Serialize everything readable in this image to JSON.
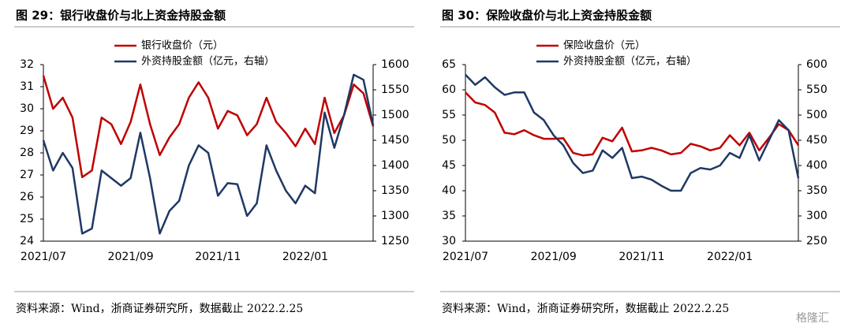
{
  "chart_data": [
    {
      "type": "line",
      "title": "图 29：银行收盘价与北上资金持股金额",
      "categories": [
        "2021/07",
        null,
        null,
        null,
        null,
        null,
        null,
        null,
        null,
        "2021/09",
        null,
        null,
        null,
        null,
        null,
        null,
        null,
        null,
        "2021/11",
        null,
        null,
        null,
        null,
        null,
        null,
        null,
        null,
        "2022/01",
        null,
        null,
        null,
        null,
        null,
        null,
        null
      ],
      "series": [
        {
          "name": "银行收盘价（元）",
          "color": "#c00000",
          "values": [
            31.5,
            30.0,
            30.5,
            29.6,
            26.9,
            27.2,
            29.6,
            29.3,
            28.4,
            29.4,
            31.1,
            29.3,
            27.9,
            28.7,
            29.3,
            30.5,
            31.2,
            30.5,
            29.1,
            29.9,
            29.7,
            28.8,
            29.3,
            30.5,
            29.4,
            28.9,
            28.3,
            29.1,
            28.4,
            30.5,
            28.9,
            29.7,
            31.1,
            30.7,
            29.2
          ]
        },
        {
          "name": "外资持股金额（亿元，右轴）",
          "color": "#1f3864",
          "axis": "y2",
          "values": [
            1450,
            1390,
            1425,
            1395,
            1265,
            1275,
            1390,
            1375,
            1360,
            1375,
            1465,
            1375,
            1265,
            1310,
            1330,
            1400,
            1440,
            1425,
            1340,
            1365,
            1363,
            1300,
            1325,
            1440,
            1390,
            1350,
            1325,
            1360,
            1345,
            1505,
            1435,
            1500,
            1580,
            1570,
            1480
          ]
        }
      ],
      "ylim": [
        24,
        32
      ],
      "yticks": [
        24,
        25,
        26,
        27,
        28,
        29,
        30,
        31,
        32
      ],
      "y2lim": [
        1250,
        1600
      ],
      "y2ticks": [
        1250,
        1300,
        1350,
        1400,
        1450,
        1500,
        1550,
        1600
      ],
      "source": "资料来源：Wind，浙商证券研究所，数据截止 2022.2.25"
    },
    {
      "type": "line",
      "title": "图 30：保险收盘价与北上资金持股金额",
      "categories": [
        "2021/07",
        null,
        null,
        null,
        null,
        null,
        null,
        null,
        null,
        "2021/09",
        null,
        null,
        null,
        null,
        null,
        null,
        null,
        null,
        "2021/11",
        null,
        null,
        null,
        null,
        null,
        null,
        null,
        null,
        "2022/01",
        null,
        null,
        null,
        null,
        null,
        null,
        null
      ],
      "series": [
        {
          "name": "保险收盘价（元）",
          "color": "#c00000",
          "values": [
            59.5,
            57.5,
            57.0,
            55.5,
            51.5,
            51.2,
            52.0,
            51.0,
            50.3,
            50.3,
            50.4,
            47.5,
            47.0,
            47.2,
            50.5,
            49.8,
            52.5,
            47.8,
            48.0,
            48.5,
            48.0,
            47.2,
            47.5,
            49.3,
            48.8,
            48.0,
            48.5,
            51.0,
            49.0,
            51.5,
            48.0,
            50.5,
            53.2,
            52.0,
            49.0
          ]
        },
        {
          "name": "外资持股金额（亿元，右轴）",
          "color": "#1f3864",
          "axis": "y2",
          "values": [
            580,
            560,
            575,
            555,
            540,
            545,
            545,
            505,
            490,
            460,
            440,
            405,
            385,
            390,
            430,
            415,
            435,
            375,
            378,
            372,
            360,
            350,
            350,
            385,
            395,
            392,
            400,
            425,
            415,
            460,
            410,
            450,
            490,
            470,
            375
          ]
        }
      ],
      "ylim": [
        30,
        65
      ],
      "yticks": [
        30,
        35,
        40,
        45,
        50,
        55,
        60,
        65
      ],
      "y2lim": [
        250,
        600
      ],
      "y2ticks": [
        250,
        300,
        350,
        400,
        450,
        500,
        550,
        600
      ],
      "source": "资料来源：Wind，浙商证券研究所，数据截止 2022.2.25"
    }
  ],
  "watermark": "格隆汇"
}
